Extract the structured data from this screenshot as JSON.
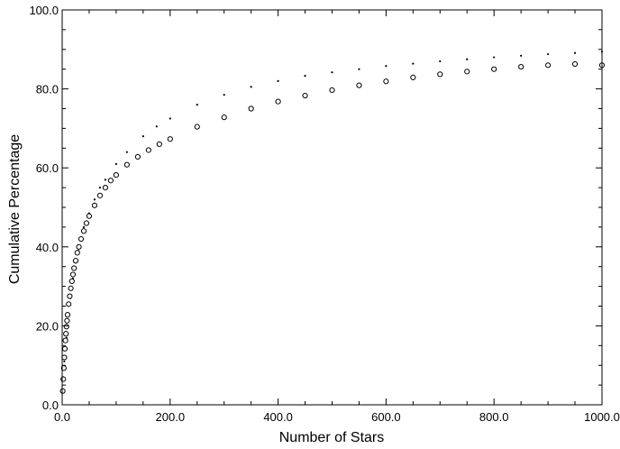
{
  "chart_data": {
    "type": "scatter",
    "title": "",
    "xlabel": "Number of Stars",
    "ylabel": "Cumulative Percentage",
    "xlim": [
      0,
      1000
    ],
    "ylim": [
      0,
      100
    ],
    "x_ticks": [
      0,
      200,
      400,
      600,
      800,
      1000
    ],
    "x_tick_labels": [
      "0.0",
      "200.0",
      "400.0",
      "600.0",
      "800.0",
      "1000.0"
    ],
    "y_ticks": [
      0,
      20,
      40,
      60,
      80,
      100
    ],
    "y_tick_labels": [
      "0.0",
      "20.0",
      "40.0",
      "60.0",
      "80.0",
      "100.0"
    ],
    "grid": false,
    "legend": "none",
    "colors": {
      "marker_stroke": "#000000",
      "marker_fill": "#ffffff",
      "axis": "#000000"
    },
    "series": [
      {
        "marker": "dot",
        "x": [
          1,
          2,
          4,
          6,
          8,
          10,
          12,
          15,
          20,
          25,
          30,
          35,
          40,
          50,
          60,
          70,
          80,
          100,
          120,
          150,
          175,
          200,
          250,
          300,
          350,
          400,
          450,
          500,
          550,
          600,
          650,
          700,
          750,
          800,
          850,
          900,
          950,
          1000
        ],
        "y": [
          3.5,
          7,
          11,
          14,
          17,
          20,
          23,
          27,
          32,
          36,
          39,
          42,
          45,
          48.5,
          52,
          55,
          57,
          61,
          64,
          68,
          70.5,
          72.5,
          76,
          78.5,
          80.5,
          82,
          83.3,
          84.2,
          85,
          85.8,
          86.4,
          87,
          87.5,
          88,
          88.4,
          88.8,
          89.1,
          89.4
        ]
      },
      {
        "marker": "circle",
        "x": [
          1,
          2,
          3,
          4,
          5,
          6,
          7,
          8,
          9,
          10,
          12,
          14,
          16,
          18,
          20,
          22,
          25,
          28,
          31,
          35,
          40,
          45,
          50,
          60,
          70,
          80,
          90,
          100,
          120,
          140,
          160,
          180,
          200,
          250,
          300,
          350,
          400,
          450,
          500,
          550,
          600,
          650,
          700,
          750,
          800,
          850,
          900,
          950,
          1000
        ],
        "y": [
          3.5,
          6.5,
          9.3,
          12,
          14.2,
          16.3,
          18,
          19.8,
          21.3,
          22.8,
          25.5,
          27.5,
          29.5,
          31.3,
          33,
          34.6,
          36.5,
          38.5,
          40,
          42,
          44,
          46,
          47.8,
          50.5,
          53,
          55,
          56.8,
          58.2,
          60.8,
          62.8,
          64.5,
          66,
          67.3,
          70.4,
          72.8,
          75,
          76.8,
          78.3,
          79.7,
          80.9,
          81.9,
          82.9,
          83.7,
          84.4,
          85,
          85.6,
          86,
          86.3,
          86
        ]
      }
    ]
  }
}
